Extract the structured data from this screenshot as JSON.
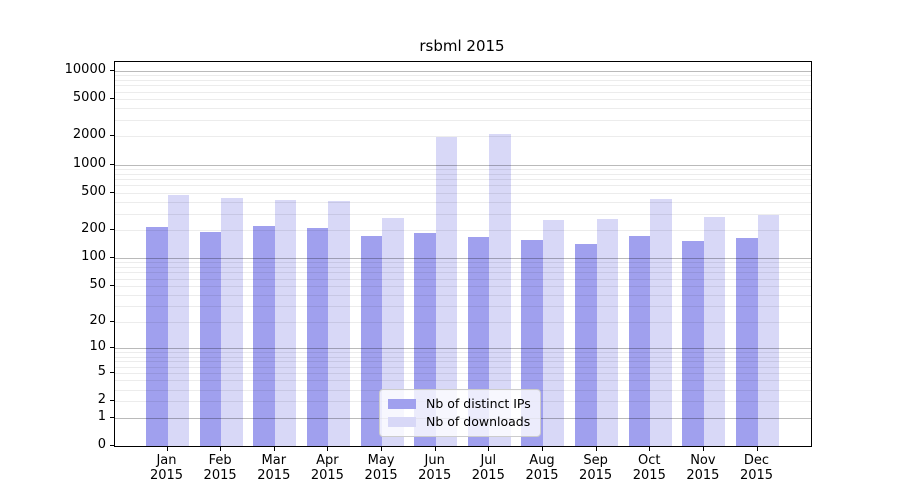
{
  "chart_data": {
    "type": "bar",
    "title": "rsbml 2015",
    "x_tick_months": [
      "Jan",
      "Feb",
      "Mar",
      "Apr",
      "May",
      "Jun",
      "Jul",
      "Aug",
      "Sep",
      "Oct",
      "Nov",
      "Dec"
    ],
    "x_tick_year": "2015",
    "series": [
      {
        "name": "Nb of distinct IPs",
        "color": "#a0a0ee",
        "values": [
          215,
          190,
          220,
          212,
          173,
          186,
          170,
          157,
          140,
          172,
          152,
          165
        ]
      },
      {
        "name": "Nb of downloads",
        "color": "#d8d8f7",
        "values": [
          470,
          444,
          416,
          406,
          266,
          1950,
          2100,
          256,
          262,
          432,
          276,
          288
        ]
      }
    ],
    "yscale": "log1p",
    "yticks": [
      0,
      1,
      2,
      5,
      10,
      20,
      50,
      100,
      200,
      500,
      1000,
      2000,
      5000,
      10000
    ],
    "ylim": [
      0,
      12250
    ],
    "grid": true,
    "grid_major_at": [
      1,
      10,
      100,
      1000,
      10000
    ],
    "legend_position": "lower center",
    "colors": {
      "bar_distinct_ips": "#a0a0ee",
      "bar_downloads": "#d8d8f7",
      "axis": "#000000",
      "legend_border": "#cccccc"
    }
  }
}
